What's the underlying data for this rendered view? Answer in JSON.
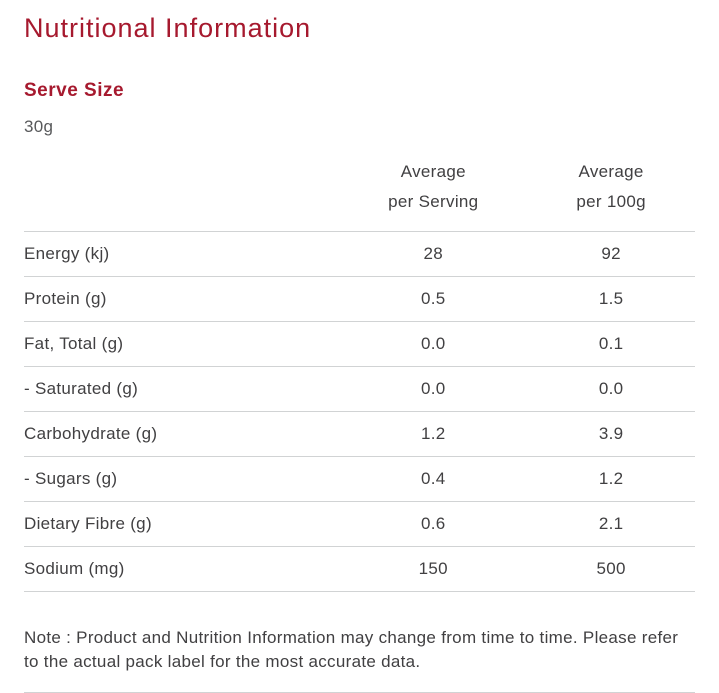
{
  "page": {
    "title": "Nutritional Information",
    "serve_size_heading": "Serve Size",
    "serve_size_value": "30g",
    "note": "Note : Product and Nutrition Information may change from time to time. Please refer to the actual pack label for the most accurate data."
  },
  "table": {
    "header": {
      "per_serving_line1": "Average",
      "per_serving_line2": "per Serving",
      "per_100g_line1": "Average",
      "per_100g_line2": "per 100g"
    },
    "rows": [
      {
        "label": "Energy (kj)",
        "per_serving": "28",
        "per_100g": "92"
      },
      {
        "label": "Protein (g)",
        "per_serving": "0.5",
        "per_100g": "1.5"
      },
      {
        "label": "Fat, Total (g)",
        "per_serving": "0.0",
        "per_100g": "0.1"
      },
      {
        "label": "- Saturated (g)",
        "per_serving": "0.0",
        "per_100g": "0.0"
      },
      {
        "label": "Carbohydrate (g)",
        "per_serving": "1.2",
        "per_100g": "3.9"
      },
      {
        "label": "- Sugars (g)",
        "per_serving": "0.4",
        "per_100g": "1.2"
      },
      {
        "label": "Dietary Fibre (g)",
        "per_serving": "0.6",
        "per_100g": "2.1"
      },
      {
        "label": "Sodium (mg)",
        "per_serving": "150",
        "per_100g": "500"
      }
    ]
  },
  "colors": {
    "accent": "#a6192e",
    "text": "#414042",
    "muted": "#58595b",
    "border": "#d1d3d4"
  }
}
